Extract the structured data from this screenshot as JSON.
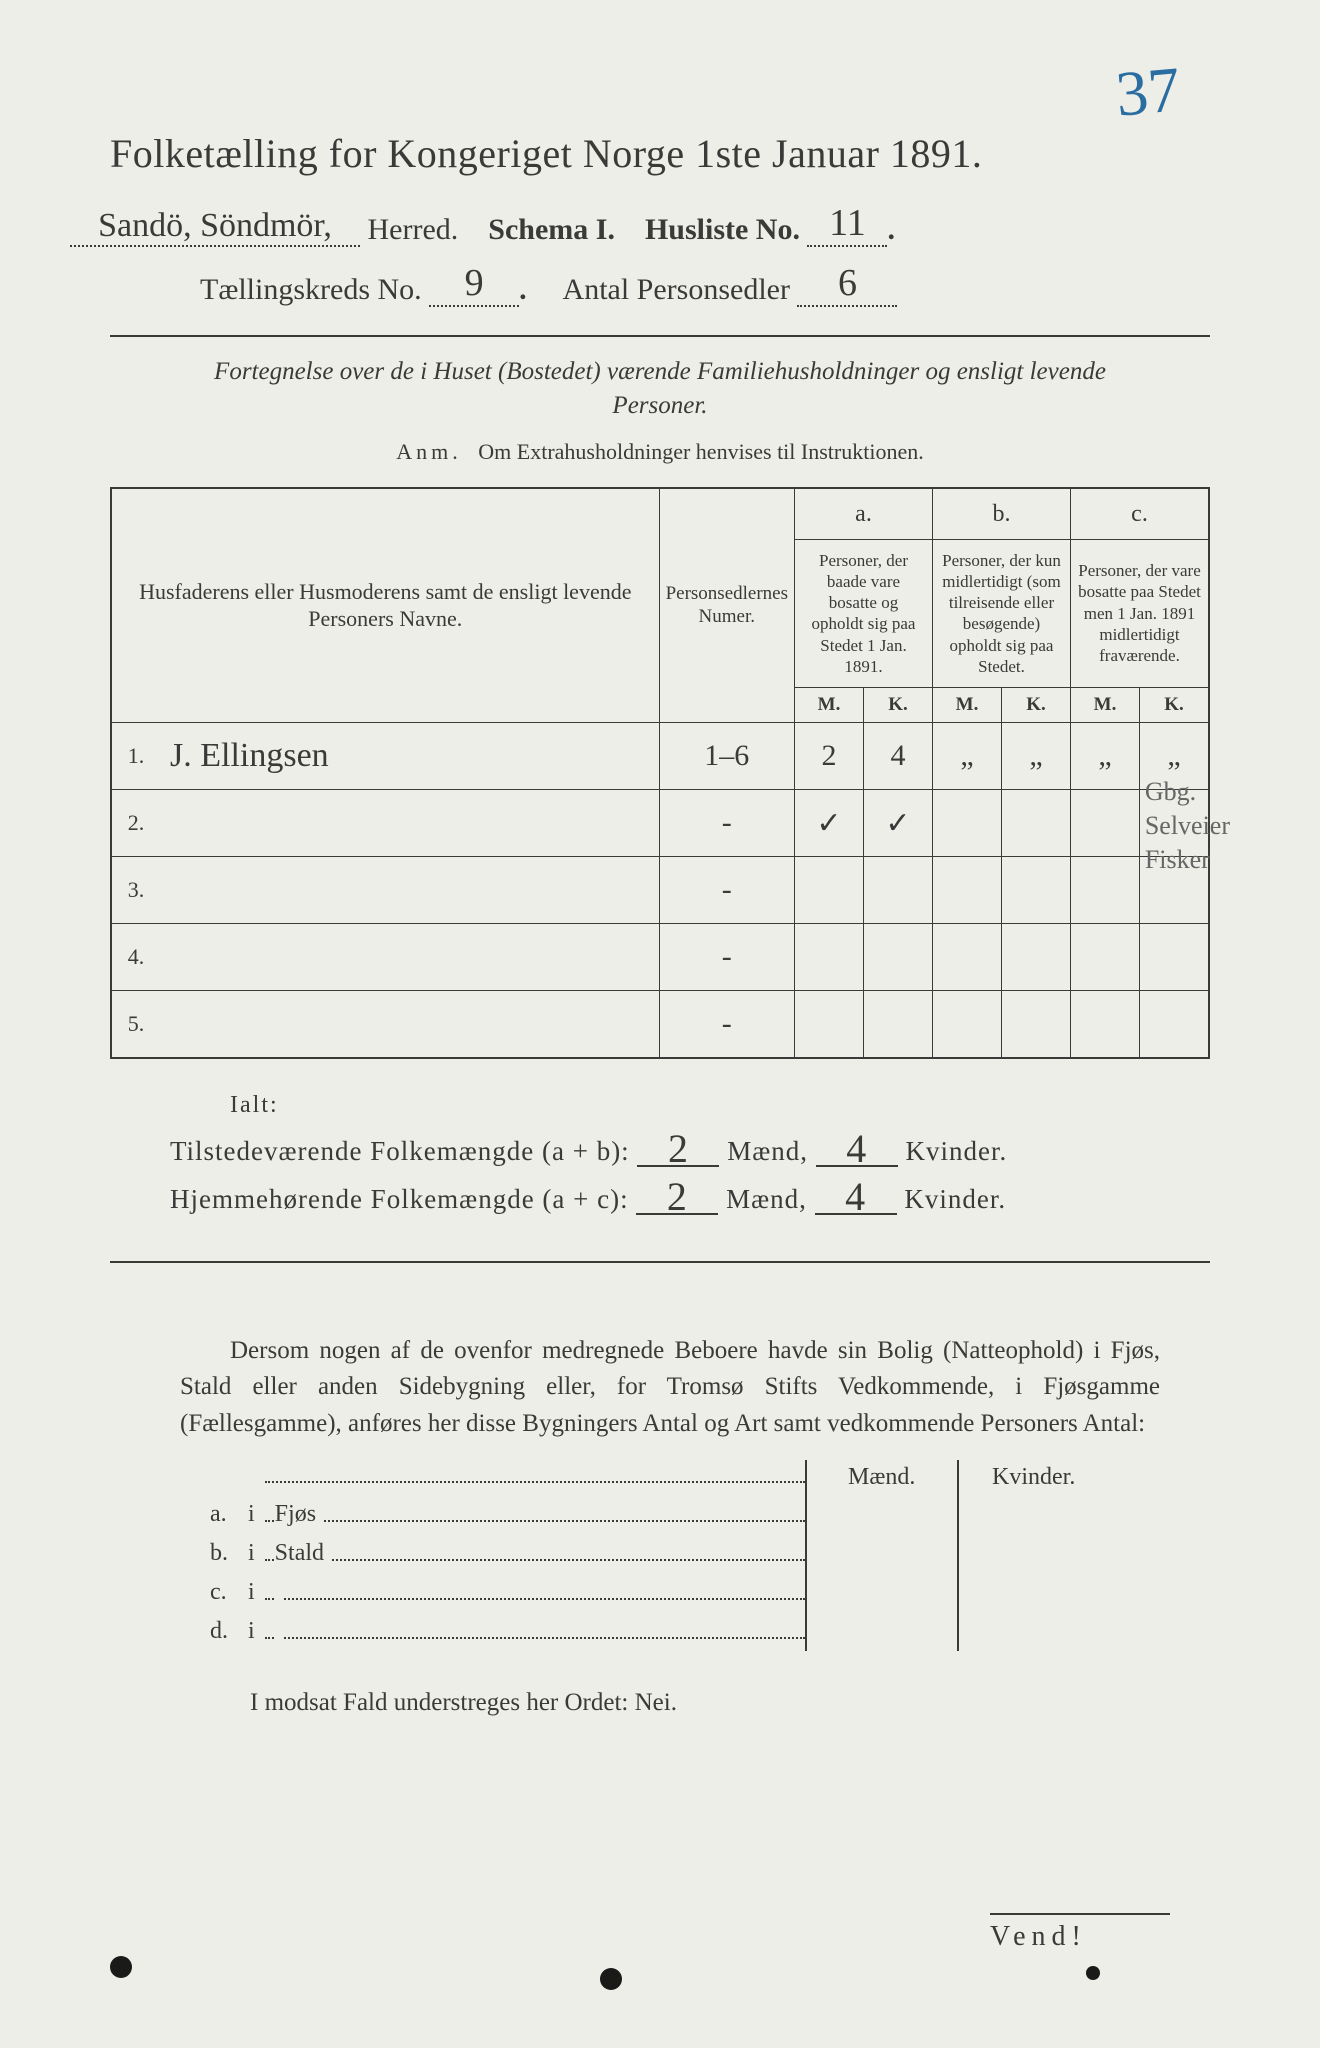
{
  "corner_number": "37",
  "title": "Folketælling for Kongeriget Norge 1ste Januar 1891.",
  "herred_hand": "Sandö, Söndmör,",
  "herred_label": "Herred.",
  "schema_label": "Schema I.",
  "husliste_label": "Husliste No.",
  "husliste_no": "11",
  "kreds_label": "Tællingskreds No.",
  "kreds_no": "9",
  "antal_label": "Antal Personsedler",
  "antal_no": "6",
  "subtitle": "Fortegnelse over de i Huset (Bostedet) værende Familiehusholdninger og ensligt levende Personer.",
  "anm_prefix": "Anm.",
  "anm_text": "Om Extrahusholdninger henvises til Instruktionen.",
  "table": {
    "col_name": "Husfaderens eller Husmoderens samt de ensligt levende Personers Navne.",
    "col_ps": "Personsedlernes Numer.",
    "col_a_label": "a.",
    "col_a": "Personer, der baade vare bosatte og opholdt sig paa Stedet 1 Jan. 1891.",
    "col_b_label": "b.",
    "col_b": "Personer, der kun midlertidigt (som tilreisende eller besøgende) opholdt sig paa Stedet.",
    "col_c_label": "c.",
    "col_c": "Personer, der vare bosatte paa Stedet men 1 Jan. 1891 midlertidigt fraværende.",
    "M": "M.",
    "K": "K.",
    "rows": [
      {
        "n": "1.",
        "name": "J. Ellingsen",
        "ps": "1–6",
        "aM": "2",
        "aK": "4",
        "bM": "„",
        "bK": "„",
        "cM": "„",
        "cK": "„"
      },
      {
        "n": "2.",
        "name": "",
        "ps": "-",
        "aM": "✓",
        "aK": "✓",
        "bM": "",
        "bK": "",
        "cM": "",
        "cK": ""
      },
      {
        "n": "3.",
        "name": "",
        "ps": "-",
        "aM": "",
        "aK": "",
        "bM": "",
        "bK": "",
        "cM": "",
        "cK": ""
      },
      {
        "n": "4.",
        "name": "",
        "ps": "-",
        "aM": "",
        "aK": "",
        "bM": "",
        "bK": "",
        "cM": "",
        "cK": ""
      },
      {
        "n": "5.",
        "name": "",
        "ps": "-",
        "aM": "",
        "aK": "",
        "bM": "",
        "bK": "",
        "cM": "",
        "cK": ""
      }
    ]
  },
  "margin_notes": [
    "Gbg.",
    "Selveier",
    "Fisker"
  ],
  "ialt": "Ialt:",
  "sum1_label_a": "Tilstedeværende Folkemængde (a + b):",
  "sum2_label_a": "Hjemmehørende Folkemængde (a + c):",
  "maend": "Mænd,",
  "kvinder": "Kvinder.",
  "sum1_m": "2",
  "sum1_k": "4",
  "sum2_m": "2",
  "sum2_k": "4",
  "para": "Dersom nogen af de ovenfor medregnede Beboere havde sin Bolig (Natteophold) i Fjøs, Stald eller anden Sidebygning eller, for Tromsø Stifts Vedkommende, i Fjøsgamme (Fællesgamme), anføres her disse Bygningers Antal og Art samt vedkommende Personers Antal:",
  "bld_head_m": "Mænd.",
  "bld_head_k": "Kvinder.",
  "bld_rows": [
    {
      "k": "a.",
      "i": "i",
      "lbl": "Fjøs"
    },
    {
      "k": "b.",
      "i": "i",
      "lbl": "Stald"
    },
    {
      "k": "c.",
      "i": "i",
      "lbl": ""
    },
    {
      "k": "d.",
      "i": "i",
      "lbl": ""
    }
  ],
  "nei_line_a": "I modsat Fald understreges her Ordet:",
  "nei_word": "Nei.",
  "vend": "Vend!",
  "colors": {
    "bg": "#edeee8",
    "ink": "#3a3a38",
    "blue": "#2a6da0"
  }
}
